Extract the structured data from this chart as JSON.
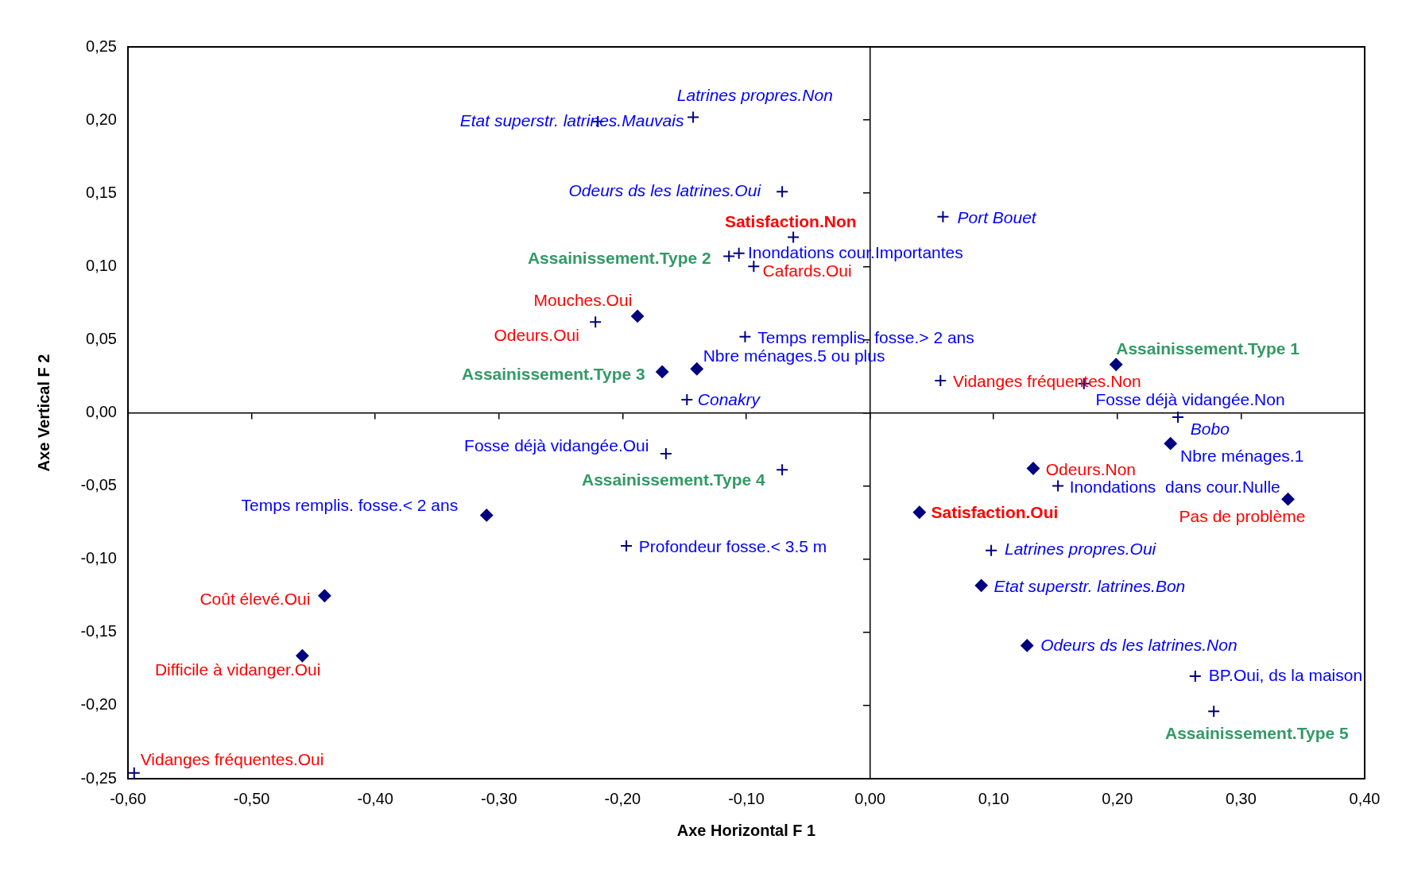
{
  "chart_data": {
    "type": "scatter",
    "xlabel": "Axe Horizontal F 1",
    "ylabel": "Axe Vertical F 2",
    "xlim": [
      -0.6,
      0.4
    ],
    "ylim": [
      -0.25,
      0.25
    ],
    "xticks": [
      {
        "value": -0.6,
        "label": "-0,60"
      },
      {
        "value": -0.5,
        "label": "-0,50"
      },
      {
        "value": -0.4,
        "label": "-0,40"
      },
      {
        "value": -0.3,
        "label": "-0,30"
      },
      {
        "value": -0.2,
        "label": "-0,20"
      },
      {
        "value": -0.1,
        "label": "-0,10"
      },
      {
        "value": 0,
        "label": "0,00"
      },
      {
        "value": 0.1,
        "label": "0,10"
      },
      {
        "value": 0.2,
        "label": "0,20"
      },
      {
        "value": 0.3,
        "label": "0,30"
      },
      {
        "value": 0.4,
        "label": "0,40"
      }
    ],
    "yticks": [
      {
        "value": -0.25,
        "label": "-0,25"
      },
      {
        "value": -0.2,
        "label": "-0,20"
      },
      {
        "value": -0.15,
        "label": "-0,15"
      },
      {
        "value": -0.1,
        "label": "-0,10"
      },
      {
        "value": -0.05,
        "label": "-0,05"
      },
      {
        "value": 0,
        "label": "0,00"
      },
      {
        "value": 0.05,
        "label": "0,05"
      },
      {
        "value": 0.1,
        "label": "0,10"
      },
      {
        "value": 0.15,
        "label": "0,15"
      },
      {
        "value": 0.2,
        "label": "0,20"
      },
      {
        "value": 0.25,
        "label": "0,25"
      }
    ],
    "series": [
      {
        "color": "#000080",
        "marker": "cross",
        "x": [
          -0.143,
          -0.22,
          -0.071,
          0.059,
          -0.148,
          0.249,
          0.098
        ],
        "values": [
          0.202,
          0.199,
          0.151,
          0.134,
          0.009,
          -0.003,
          -0.094
        ],
        "value_labels": [
          "Latrines propres.Non",
          "Etat superstr. latrines.Mauvais",
          "Odeurs ds les latrines.Oui",
          "Port Bouet",
          "Conakry",
          "Bobo",
          "Latrines propres.Oui"
        ]
      },
      {
        "color": "#000080",
        "marker": "diamond",
        "x": [
          0.09,
          0.127
        ],
        "values": [
          -0.118,
          -0.159
        ],
        "value_labels": [
          "Etat superstr. latrines.Bon",
          "Odeurs ds les latrines.Non"
        ]
      },
      {
        "color": "#000080",
        "marker": "cross",
        "x": [
          -0.106,
          -0.101,
          0.173,
          -0.165,
          0.152,
          -0.197,
          0.263
        ],
        "values": [
          0.109,
          0.052,
          0.02,
          -0.028,
          -0.05,
          -0.091,
          -0.18
        ],
        "value_labels": [
          "Inondations cour.Importantes",
          "Temps remplis. fosse.> 2 ans",
          "Fosse déjà vidangée.Non",
          "Fosse déjà vidangée.Oui",
          "Inondations  dans cour.Nulle",
          "Profondeur fosse.< 3.5 m",
          "BP.Oui, ds la maison"
        ]
      },
      {
        "color": "#000080",
        "marker": "diamond",
        "x": [
          -0.14,
          0.243,
          -0.31
        ],
        "values": [
          0.03,
          -0.021,
          -0.07
        ],
        "value_labels": [
          "Nbre ménages.5 ou plus",
          "Nbre ménages.1",
          "Temps remplis. fosse.< 2 ans"
        ]
      },
      {
        "color": "#000080",
        "marker": "cross",
        "x": [
          -0.094,
          -0.222,
          0.057,
          -0.595
        ],
        "values": [
          0.1,
          0.062,
          0.022,
          -0.246
        ],
        "value_labels": [
          "Cafards.Oui",
          "Odeurs.Oui",
          "Vidanges fréquentes.Non",
          "Vidanges fréquentes.Oui"
        ]
      },
      {
        "color": "#000080",
        "marker": "diamond",
        "x": [
          -0.188,
          0.132,
          0.338,
          -0.441,
          -0.459
        ],
        "values": [
          0.066,
          -0.038,
          -0.059,
          -0.125,
          -0.166
        ],
        "value_labels": [
          "Mouches.Oui",
          "Odeurs.Non",
          "Pas de problème",
          "Coût élevé.Oui",
          "Difficile à vidanger.Oui"
        ]
      },
      {
        "color": "#000080",
        "marker": "cross",
        "x": [
          -0.062
        ],
        "values": [
          0.12
        ],
        "value_labels": [
          "Satisfaction.Non"
        ]
      },
      {
        "color": "#000080",
        "marker": "diamond",
        "x": [
          0.04
        ],
        "values": [
          -0.068
        ],
        "value_labels": [
          "Satisfaction.Oui"
        ]
      },
      {
        "color": "#000080",
        "marker": "cross",
        "x": [
          -0.114,
          -0.071,
          0.278
        ],
        "values": [
          0.107,
          -0.039,
          -0.204
        ],
        "value_labels": [
          "Assainissement.Type 2",
          "Assainissement.Type 4",
          "Assainissement.Type 5"
        ]
      },
      {
        "color": "#000080",
        "marker": "diamond",
        "x": [
          -0.168,
          0.199
        ],
        "values": [
          0.028,
          0.033
        ],
        "value_labels": [
          "Assainissement.Type 3",
          "Assainissement.Type 1"
        ]
      }
    ]
  }
}
